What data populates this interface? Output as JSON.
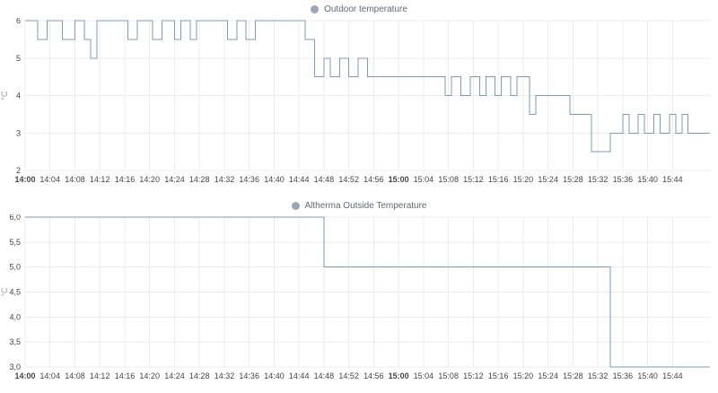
{
  "colors": {
    "line": "#7e9bb3",
    "marker": "#9aa7b6",
    "grid": "#ececec",
    "tick_text": "#454545",
    "unit_text": "#9a9a9a",
    "background": "#ffffff"
  },
  "x_axis": {
    "ticks": [
      {
        "m": 0,
        "label": "14:00",
        "bold": true
      },
      {
        "m": 4,
        "label": "14:04",
        "bold": false
      },
      {
        "m": 8,
        "label": "14:08",
        "bold": false
      },
      {
        "m": 12,
        "label": "14:12",
        "bold": false
      },
      {
        "m": 16,
        "label": "14:16",
        "bold": false
      },
      {
        "m": 20,
        "label": "14:20",
        "bold": false
      },
      {
        "m": 24,
        "label": "14:24",
        "bold": false
      },
      {
        "m": 28,
        "label": "14:28",
        "bold": false
      },
      {
        "m": 32,
        "label": "14:32",
        "bold": false
      },
      {
        "m": 36,
        "label": "14:36",
        "bold": false
      },
      {
        "m": 40,
        "label": "14:40",
        "bold": false
      },
      {
        "m": 44,
        "label": "14:44",
        "bold": false
      },
      {
        "m": 48,
        "label": "14:48",
        "bold": false
      },
      {
        "m": 52,
        "label": "14:52",
        "bold": false
      },
      {
        "m": 56,
        "label": "14:56",
        "bold": false
      },
      {
        "m": 60,
        "label": "15:00",
        "bold": true
      },
      {
        "m": 64,
        "label": "15:04",
        "bold": false
      },
      {
        "m": 68,
        "label": "15:08",
        "bold": false
      },
      {
        "m": 72,
        "label": "15:12",
        "bold": false
      },
      {
        "m": 76,
        "label": "15:16",
        "bold": false
      },
      {
        "m": 80,
        "label": "15:20",
        "bold": false
      },
      {
        "m": 84,
        "label": "15:24",
        "bold": false
      },
      {
        "m": 88,
        "label": "15:28",
        "bold": false
      },
      {
        "m": 92,
        "label": "15:32",
        "bold": false
      },
      {
        "m": 96,
        "label": "15:36",
        "bold": false
      },
      {
        "m": 100,
        "label": "15:40",
        "bold": false
      },
      {
        "m": 104,
        "label": "15:44",
        "bold": false
      }
    ]
  },
  "chart_data": [
    {
      "type": "line",
      "line_style": "step-after",
      "title": "Outdoor temperature",
      "ylabel": "°C",
      "ylim": [
        2,
        6
      ],
      "xlim_minutes": [
        0,
        110
      ],
      "x_time_range": [
        "14:00",
        "15:48"
      ],
      "grid": true,
      "legend_position": "top-center",
      "y_ticks": [
        {
          "v": 6,
          "label": "6"
        },
        {
          "v": 5,
          "label": "5"
        },
        {
          "v": 4,
          "label": "4"
        },
        {
          "v": 3,
          "label": "3"
        },
        {
          "v": 2,
          "label": "2"
        }
      ],
      "points_time_value": [
        [
          0,
          6
        ],
        [
          2,
          5.5
        ],
        [
          3.5,
          6
        ],
        [
          6,
          5.5
        ],
        [
          8,
          6
        ],
        [
          9.5,
          5.5
        ],
        [
          10.5,
          5
        ],
        [
          11.5,
          6
        ],
        [
          16.5,
          5.5
        ],
        [
          18,
          6
        ],
        [
          20.5,
          5.5
        ],
        [
          22,
          6
        ],
        [
          24,
          5.5
        ],
        [
          25,
          6
        ],
        [
          26.5,
          5.5
        ],
        [
          27.5,
          6
        ],
        [
          32.5,
          5.5
        ],
        [
          34,
          6
        ],
        [
          35.5,
          5.5
        ],
        [
          37,
          6
        ],
        [
          45,
          5.5
        ],
        [
          46.5,
          4.5
        ],
        [
          48,
          5
        ],
        [
          49,
          4.5
        ],
        [
          50.5,
          5
        ],
        [
          52,
          4.5
        ],
        [
          53.5,
          5
        ],
        [
          55,
          4.5
        ],
        [
          67.5,
          4
        ],
        [
          68.5,
          4.5
        ],
        [
          70,
          4
        ],
        [
          71.5,
          4.5
        ],
        [
          73,
          4
        ],
        [
          74,
          4.5
        ],
        [
          75.5,
          4
        ],
        [
          76.5,
          4.5
        ],
        [
          78,
          4
        ],
        [
          79,
          4.5
        ],
        [
          81,
          3.5
        ],
        [
          82,
          4
        ],
        [
          87.5,
          3.5
        ],
        [
          91,
          2.5
        ],
        [
          94,
          3
        ],
        [
          96,
          3.5
        ],
        [
          97,
          3
        ],
        [
          98.5,
          3.5
        ],
        [
          99.5,
          3
        ],
        [
          101,
          3.5
        ],
        [
          102,
          3
        ],
        [
          103.5,
          3.5
        ],
        [
          104.5,
          3
        ],
        [
          105.5,
          3.5
        ],
        [
          106.5,
          3
        ],
        [
          110,
          3
        ]
      ]
    },
    {
      "type": "line",
      "line_style": "step-after",
      "title": "Altherma Outside Temperature",
      "ylabel": "°C",
      "ylim": [
        3,
        6
      ],
      "xlim_minutes": [
        0,
        110
      ],
      "x_time_range": [
        "14:00",
        "15:48"
      ],
      "grid": true,
      "legend_position": "top-center",
      "y_ticks": [
        {
          "v": 6,
          "label": "6,0"
        },
        {
          "v": 5.5,
          "label": "5,5"
        },
        {
          "v": 5,
          "label": "5,0"
        },
        {
          "v": 4.5,
          "label": "4,5"
        },
        {
          "v": 4,
          "label": "4,0"
        },
        {
          "v": 3.5,
          "label": "3,5"
        },
        {
          "v": 3,
          "label": "3,0"
        }
      ],
      "points_time_value": [
        [
          0,
          6
        ],
        [
          48,
          5
        ],
        [
          94,
          3
        ],
        [
          110,
          3
        ]
      ]
    }
  ]
}
